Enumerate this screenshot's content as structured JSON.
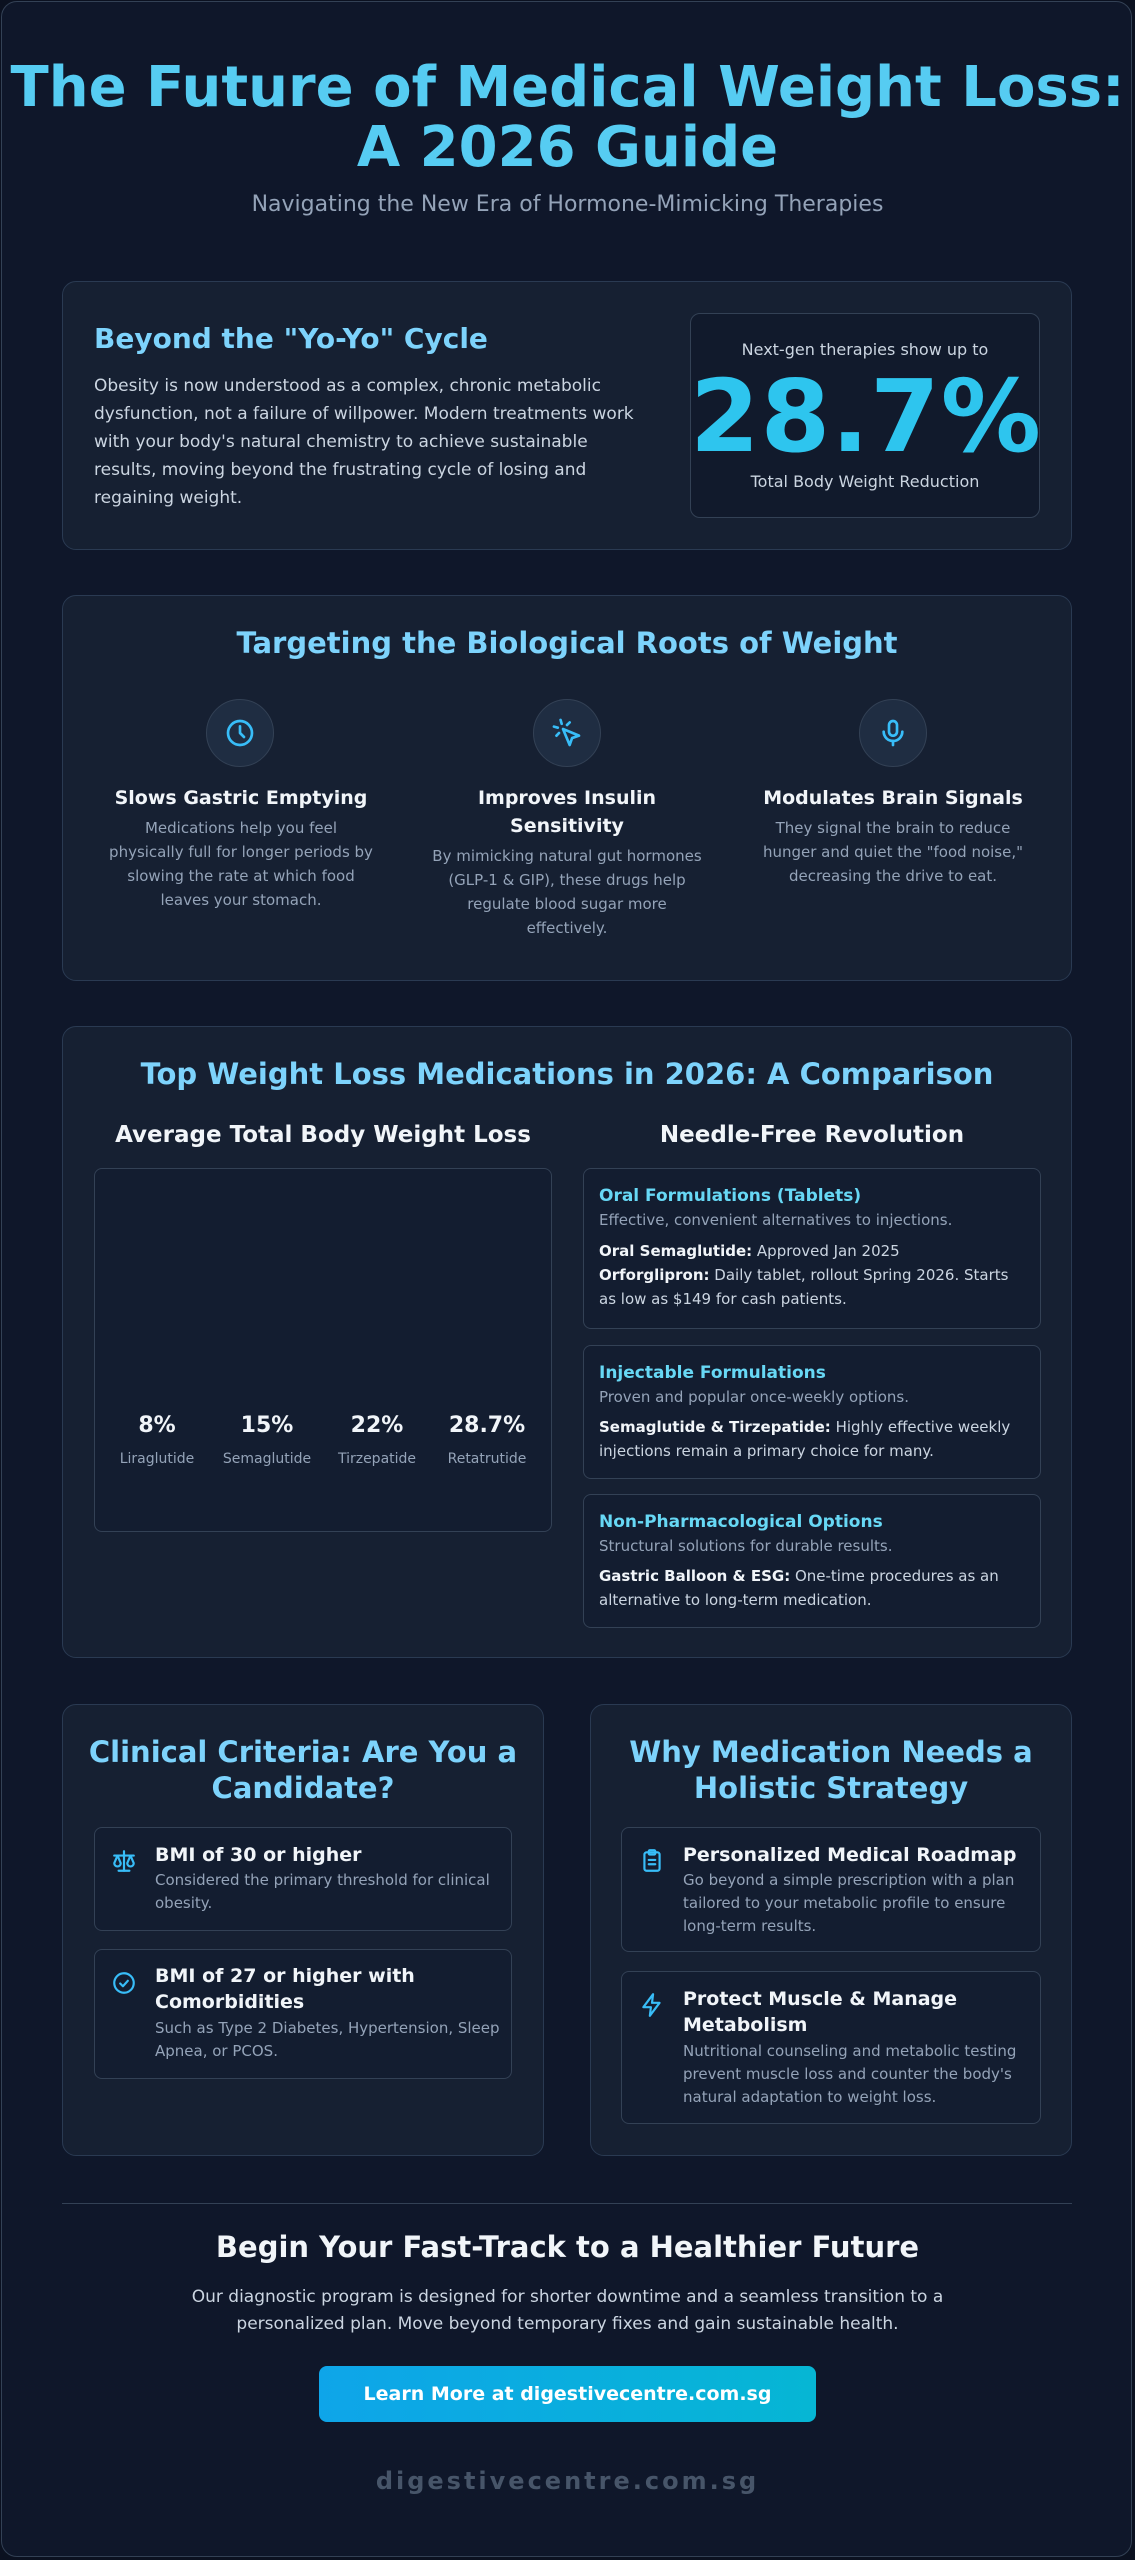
{
  "header": {
    "title": "The Future of Medical Weight Loss: A 2026 Guide",
    "subtitle": "Navigating the New Era of Hormone-Mimicking Therapies"
  },
  "intro": {
    "heading": "Beyond the \"Yo-Yo\" Cycle",
    "text": "Obesity is now understood as a complex, chronic metabolic dysfunction, not a failure of willpower. Modern treatments work with your body's natural chemistry to achieve sustainable results, moving beyond the frustrating cycle of losing and regaining weight.",
    "stat_top": "Next-gen therapies show up to",
    "stat_value": "28.7%",
    "stat_bottom": "Total Body Weight Reduction"
  },
  "mechanisms": {
    "heading": "Targeting the Biological Roots of Weight",
    "items": [
      {
        "icon": "clock-icon",
        "title": "Slows Gastric Emptying",
        "text": "Medications help you feel physically full for longer periods by slowing the rate at which food leaves your stomach."
      },
      {
        "icon": "pointer-click-icon",
        "title": "Improves Insulin Sensitivity",
        "text": "By mimicking natural gut hormones (GLP-1 & GIP), these drugs help regulate blood sugar more effectively."
      },
      {
        "icon": "microphone-icon",
        "title": "Modulates Brain Signals",
        "text": "They signal the brain to reduce hunger and quiet the \"food noise,\" decreasing the drive to eat."
      }
    ]
  },
  "comparison": {
    "heading": "Top Weight Loss Medications in 2026: A Comparison",
    "chart_heading": "Average Total Body Weight Loss",
    "options_heading": "Needle-Free Revolution",
    "options": [
      {
        "title": "Oral Formulations (Tablets)",
        "subtitle": "Effective, convenient alternatives to injections.",
        "lines": [
          {
            "label": "Oral Semaglutide:",
            "text": " Approved Jan 2025"
          },
          {
            "label": "Orforglipron:",
            "text": " Daily tablet, rollout Spring 2026. Starts as low as $149 for cash patients."
          }
        ]
      },
      {
        "title": "Injectable Formulations",
        "subtitle": "Proven and popular once-weekly options.",
        "lines": [
          {
            "label": "Semaglutide & Tirzepatide:",
            "text": " Highly effective weekly injections remain a primary choice for many."
          }
        ]
      },
      {
        "title": "Non-Pharmacological Options",
        "subtitle": "Structural solutions for durable results.",
        "lines": [
          {
            "label": "Gastric Balloon & ESG:",
            "text": " One-time procedures as an alternative to long-term medication."
          }
        ]
      }
    ]
  },
  "chart_data": {
    "type": "bar",
    "title": "Average Total Body Weight Loss",
    "categories": [
      "Liraglutide",
      "Semaglutide",
      "Tirzepatide",
      "Retatrutide"
    ],
    "values": [
      8,
      15,
      22,
      28.7
    ],
    "value_labels": [
      "8%",
      "15%",
      "22%",
      "28.7%"
    ],
    "xlabel": "",
    "ylabel": "",
    "grid": false,
    "legend": "none"
  },
  "criteria": {
    "heading": "Clinical Criteria: Are You a Candidate?",
    "items": [
      {
        "icon": "scale-icon",
        "title": "BMI of 30 or higher",
        "text": "Considered the primary threshold for clinical obesity."
      },
      {
        "icon": "check-circle-icon",
        "title": "BMI of 27 or higher with Comorbidities",
        "text": "Such as Type 2 Diabetes, Hypertension, Sleep Apnea, or PCOS."
      }
    ]
  },
  "holistic": {
    "heading": "Why Medication Needs a Holistic Strategy",
    "items": [
      {
        "icon": "clipboard-icon",
        "title": "Personalized Medical Roadmap",
        "text": "Go beyond a simple prescription with a plan tailored to your metabolic profile to ensure long-term results."
      },
      {
        "icon": "lightning-icon",
        "title": "Protect Muscle & Manage Metabolism",
        "text": "Nutritional counseling and metabolic testing prevent muscle loss and counter the body's natural adaptation to weight loss."
      }
    ]
  },
  "cta": {
    "heading": "Begin Your Fast-Track to a Healthier Future",
    "text": "Our diagnostic program is designed for shorter downtime and a seamless transition to a personalized plan. Move beyond temporary fixes and gain sustainable health.",
    "button": "Learn More at digestivecentre.com.sg"
  },
  "footer": {
    "brand": "digestivecentre.com.sg"
  },
  "colors": {
    "accent": "#56ccf2",
    "stat": "#2ec5ee",
    "background": "#0f172a",
    "card": "#162032"
  }
}
